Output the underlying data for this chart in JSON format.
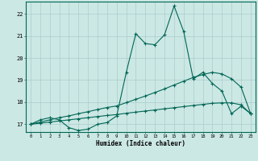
{
  "xlabel": "Humidex (Indice chaleur)",
  "xlim": [
    -0.5,
    23.5
  ],
  "ylim": [
    16.65,
    22.55
  ],
  "xticks": [
    0,
    1,
    2,
    3,
    4,
    5,
    6,
    7,
    8,
    9,
    10,
    11,
    12,
    13,
    14,
    15,
    16,
    17,
    18,
    19,
    20,
    21,
    22,
    23
  ],
  "yticks": [
    17,
    18,
    19,
    20,
    21,
    22
  ],
  "bg_color": "#cce8e4",
  "grid_color": "#aacccc",
  "line_color": "#006655",
  "line1_y": [
    17.0,
    17.2,
    17.3,
    17.2,
    16.85,
    16.72,
    16.78,
    17.0,
    17.08,
    17.38,
    19.35,
    21.1,
    20.65,
    20.6,
    21.05,
    22.35,
    21.2,
    19.05,
    19.35,
    18.85,
    18.5,
    17.48,
    17.82,
    17.48
  ],
  "line2_y": [
    17.0,
    17.1,
    17.2,
    17.3,
    17.38,
    17.48,
    17.57,
    17.67,
    17.76,
    17.83,
    17.98,
    18.13,
    18.28,
    18.44,
    18.6,
    18.78,
    18.95,
    19.12,
    19.25,
    19.35,
    19.28,
    19.06,
    18.68,
    17.48
  ],
  "line3_y": [
    17.0,
    17.05,
    17.1,
    17.15,
    17.2,
    17.25,
    17.3,
    17.35,
    17.4,
    17.44,
    17.5,
    17.55,
    17.6,
    17.65,
    17.7,
    17.75,
    17.8,
    17.85,
    17.9,
    17.95,
    17.97,
    17.97,
    17.88,
    17.48
  ]
}
